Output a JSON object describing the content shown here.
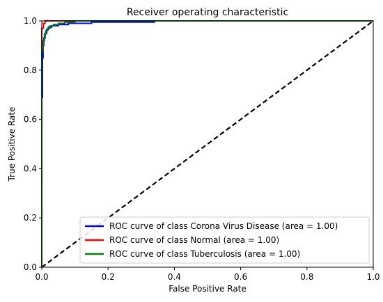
{
  "chart_data": {
    "type": "line",
    "title": "Receiver operating characteristic",
    "xlabel": "False Positive Rate",
    "ylabel": "True Positive Rate",
    "xlim": [
      0.0,
      1.0
    ],
    "ylim": [
      0.0,
      1.0
    ],
    "xticks": [
      "0.0",
      "0.2",
      "0.4",
      "0.6",
      "0.8",
      "1.0"
    ],
    "yticks": [
      "0.0",
      "0.2",
      "0.4",
      "0.6",
      "0.8",
      "1.0"
    ],
    "grid": false,
    "legend_position": "lower-right",
    "series": [
      {
        "name": "ROC curve of class Corona Virus Disease (area = 1.00)",
        "color": "#0000ff",
        "x": [
          0.0,
          0.0,
          0.002,
          0.002,
          0.004,
          0.004,
          0.006,
          0.006,
          0.01,
          0.01,
          0.015,
          0.015,
          0.02,
          0.02,
          0.03,
          0.03,
          0.05,
          0.05,
          0.08,
          0.08,
          0.15,
          0.15,
          0.34,
          0.34,
          1.0
        ],
        "y": [
          0.0,
          0.69,
          0.69,
          0.85,
          0.85,
          0.9,
          0.9,
          0.93,
          0.93,
          0.95,
          0.95,
          0.965,
          0.965,
          0.975,
          0.975,
          0.98,
          0.98,
          0.985,
          0.985,
          0.99,
          0.99,
          0.995,
          0.995,
          1.0,
          1.0
        ]
      },
      {
        "name": "ROC curve of class Normal (area = 1.00)",
        "color": "#ff0000",
        "x": [
          0.0,
          0.0,
          0.005,
          0.005,
          0.01,
          0.01,
          1.0
        ],
        "y": [
          0.0,
          0.97,
          0.97,
          0.99,
          0.99,
          1.0,
          1.0
        ]
      },
      {
        "name": "ROC curve of class Tuberculosis (area = 1.00)",
        "color": "#008000",
        "x": [
          0.0,
          0.0,
          0.004,
          0.004,
          0.008,
          0.008,
          0.012,
          0.012,
          0.018,
          0.018,
          0.025,
          0.025,
          0.035,
          0.035,
          0.05,
          0.05,
          0.07,
          0.07,
          0.1,
          0.1,
          1.0
        ],
        "y": [
          0.0,
          0.88,
          0.88,
          0.92,
          0.92,
          0.945,
          0.945,
          0.96,
          0.96,
          0.97,
          0.97,
          0.98,
          0.98,
          0.985,
          0.985,
          0.99,
          0.99,
          0.995,
          0.995,
          1.0,
          1.0
        ]
      }
    ],
    "reference_line": {
      "x": [
        0.0,
        1.0
      ],
      "y": [
        0.0,
        1.0
      ],
      "color": "#000000",
      "style": "dashed"
    }
  }
}
